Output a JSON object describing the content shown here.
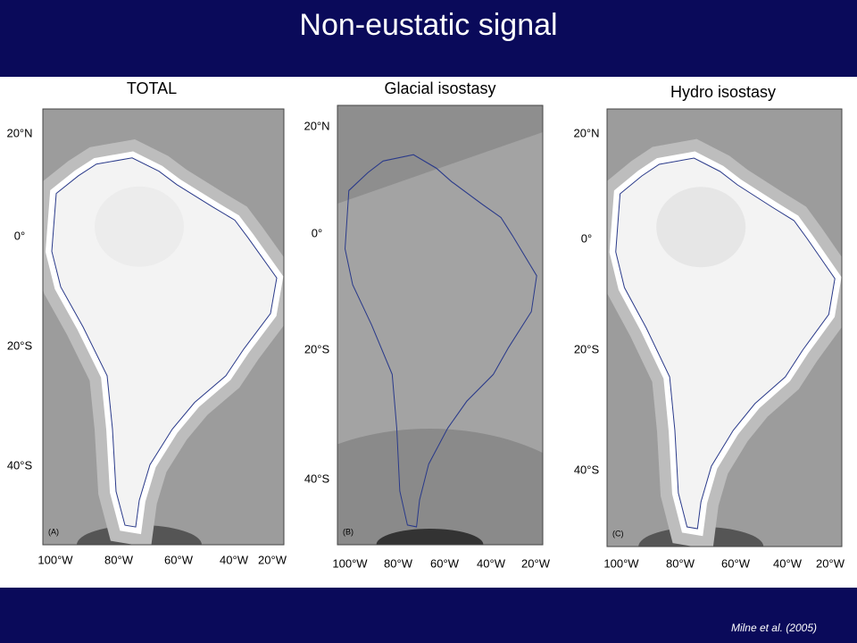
{
  "title": "Non-eustatic signal",
  "panels": [
    {
      "title": "TOTAL",
      "label": "(A)",
      "lat_labels": [
        "20°N",
        "0°",
        "20°S",
        "40°S"
      ],
      "lon_labels": [
        "100°W",
        "80°W",
        "60°W",
        "40°W",
        "20°W"
      ]
    },
    {
      "title": "Glacial isostasy",
      "label": "(B)",
      "lat_labels": [
        "20°N",
        "0°",
        "20°S",
        "40°S"
      ],
      "lon_labels": [
        "100°W",
        "80°W",
        "60°W",
        "40°W",
        "20°W"
      ]
    },
    {
      "title": "Hydro isostasy",
      "label": "(C)",
      "lat_labels": [
        "20°N",
        "0°",
        "20°S",
        "40°S"
      ],
      "lon_labels": [
        "100°W",
        "80°W",
        "60°W",
        "40°W",
        "20°W"
      ]
    }
  ],
  "citation": "Milne et al. (2005)"
}
